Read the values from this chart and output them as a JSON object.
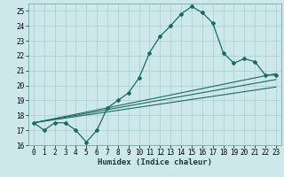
{
  "xlabel": "Humidex (Indice chaleur)",
  "ylabel": "",
  "background_color": "#cce8ea",
  "grid_color": "#aacdd0",
  "line_color": "#1a6b60",
  "xlim": [
    -0.5,
    23.5
  ],
  "ylim": [
    16,
    25.5
  ],
  "xticks": [
    0,
    1,
    2,
    3,
    4,
    5,
    6,
    7,
    8,
    9,
    10,
    11,
    12,
    13,
    14,
    15,
    16,
    17,
    18,
    19,
    20,
    21,
    22,
    23
  ],
  "yticks": [
    16,
    17,
    18,
    19,
    20,
    21,
    22,
    23,
    24,
    25
  ],
  "curve1_x": [
    0,
    1,
    2,
    3,
    4,
    5,
    6,
    7,
    8,
    9,
    10,
    11,
    12,
    13,
    14,
    15,
    16,
    17,
    18,
    19,
    20,
    21,
    22,
    23
  ],
  "curve1_y": [
    17.5,
    17.0,
    17.5,
    17.5,
    17.0,
    16.2,
    17.0,
    18.5,
    19.0,
    19.5,
    20.5,
    22.2,
    23.3,
    24.0,
    24.8,
    25.3,
    24.9,
    24.2,
    22.2,
    21.5,
    21.8,
    21.6,
    20.7,
    20.7
  ],
  "curve2_x": [
    0,
    23
  ],
  "curve2_y": [
    17.5,
    20.8
  ],
  "curve3_x": [
    0,
    23
  ],
  "curve3_y": [
    17.5,
    20.4
  ],
  "curve4_x": [
    0,
    23
  ],
  "curve4_y": [
    17.5,
    19.9
  ],
  "tick_fontsize": 5.5,
  "xlabel_fontsize": 6.5
}
